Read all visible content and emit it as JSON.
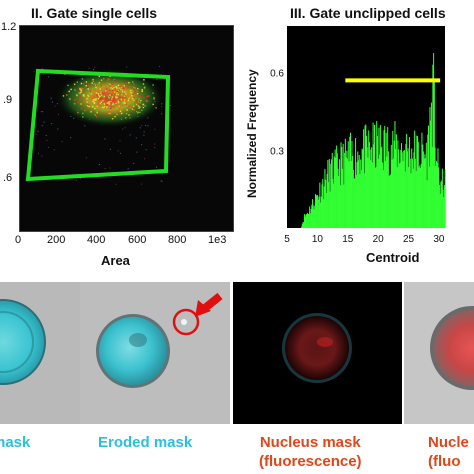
{
  "panel_left": {
    "title": "II. Gate single cells",
    "x_ticks": [
      "0",
      "200",
      "400",
      "600",
      "800"
    ],
    "x_unit_tick": "1e3",
    "y_ticks": [
      "1.2",
      ".9",
      ".6"
    ],
    "x_label": "Area",
    "gate_color": "#22dd22"
  },
  "panel_right": {
    "title": "III. Gate unclipped cells",
    "y_label": "Normalized Frequency",
    "x_label": "Centroid",
    "bar_color": "#33ff33",
    "gate_color": "#ffff00"
  },
  "chart_data": {
    "type": "bar",
    "title": "III. Gate unclipped cells",
    "xlabel": "Centroid",
    "ylabel": "Normalized Frequency",
    "x_ticks": [
      "5",
      "10",
      "15",
      "20",
      "25",
      "30"
    ],
    "y_ticks": [
      "0.3",
      "0.6"
    ],
    "xlim": [
      5,
      31
    ],
    "ylim": [
      0,
      0.78
    ],
    "gate_range": [
      14.6,
      30.2
    ],
    "gate_level": 0.57,
    "envelope": [
      {
        "x": 7.2,
        "y": 0.0
      },
      {
        "x": 7.8,
        "y": 0.05
      },
      {
        "x": 9.0,
        "y": 0.1
      },
      {
        "x": 10.5,
        "y": 0.18
      },
      {
        "x": 12.0,
        "y": 0.25
      },
      {
        "x": 14.0,
        "y": 0.3
      },
      {
        "x": 16.0,
        "y": 0.33
      },
      {
        "x": 18.0,
        "y": 0.35
      },
      {
        "x": 20.0,
        "y": 0.37
      },
      {
        "x": 23.0,
        "y": 0.36
      },
      {
        "x": 26.0,
        "y": 0.34
      },
      {
        "x": 28.0,
        "y": 0.33
      },
      {
        "x": 29.0,
        "y": 0.62
      },
      {
        "x": 29.4,
        "y": 0.37
      },
      {
        "x": 30.0,
        "y": 0.2
      },
      {
        "x": 31.0,
        "y": 0.2
      }
    ]
  },
  "captions": {
    "mask": "mask",
    "eroded_mask": "Eroded mask",
    "nucleus_mask_fluor_line1": "Nucleus mask",
    "nucleus_mask_fluor_line2": "(fluorescence)",
    "nucleus_partial_line1": "Nucle",
    "nucleus_partial_line2": "(fluo"
  },
  "colors": {
    "mask_caption": "#2bbfe0",
    "nucleus_caption": "#e0461a",
    "arrow": "#e01010",
    "cyan_cell": "#37c3d0",
    "red_nucleus": "#d82020"
  }
}
